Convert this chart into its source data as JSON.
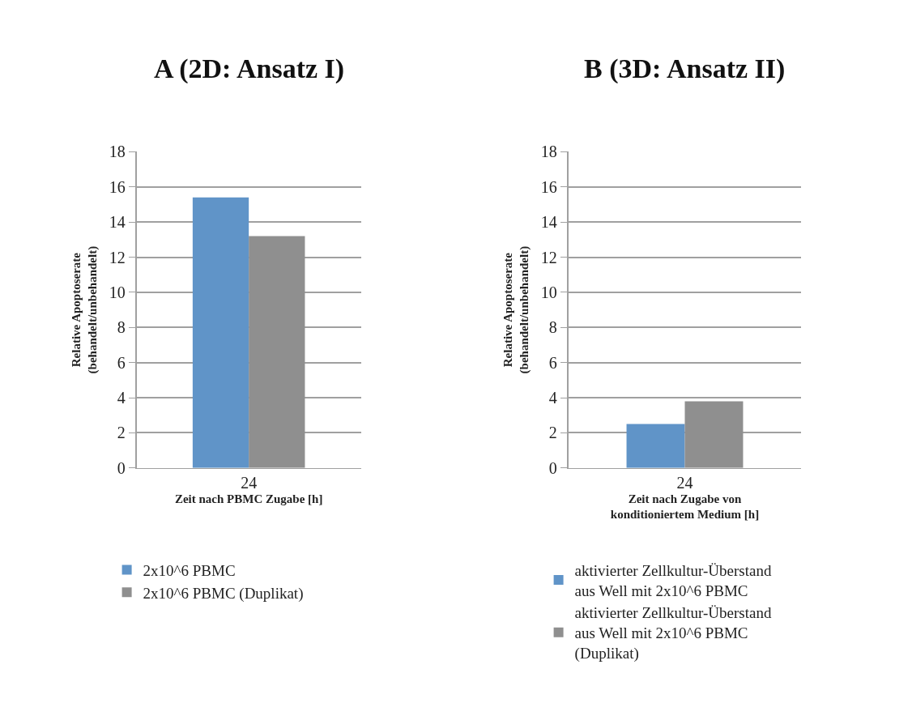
{
  "chart_data": [
    {
      "type": "bar",
      "title": "A (2D: Ansatz I)",
      "xlabel": "Zeit nach PBMC Zugabe [h]",
      "ylabel": "Relative Apoptoserate\n(behandelt/unbehandelt)",
      "categories": [
        "24"
      ],
      "series": [
        {
          "name": "2x10^6 PBMC",
          "color": "#6094c8",
          "values": [
            15.4
          ]
        },
        {
          "name": "2x10^6 PBMC (Duplikat)",
          "color": "#8f8f8f",
          "values": [
            13.2
          ]
        }
      ],
      "ylim": [
        0,
        18
      ],
      "yticks": [
        0,
        2,
        4,
        6,
        8,
        10,
        12,
        14,
        16,
        18
      ],
      "grid": "y",
      "legend": "bottom"
    },
    {
      "type": "bar",
      "title": "B (3D: Ansatz II)",
      "xlabel": "Zeit nach Zugabe von\nkonditioniertem Medium [h]",
      "ylabel": "Relative Apoptoserate\n(behandelt/unbehandelt)",
      "categories": [
        "24"
      ],
      "series": [
        {
          "name": "aktivierter Zellkultur-Überstand\naus Well mit 2x10^6 PBMC",
          "color": "#6094c8",
          "values": [
            2.5
          ]
        },
        {
          "name": "aktivierter Zellkultur-Überstand\naus Well mit 2x10^6 PBMC\n(Duplikat)",
          "color": "#8f8f8f",
          "values": [
            3.8
          ]
        }
      ],
      "ylim": [
        0,
        18
      ],
      "yticks": [
        0,
        2,
        4,
        6,
        8,
        10,
        12,
        14,
        16,
        18
      ],
      "grid": "y",
      "legend": "bottom"
    }
  ]
}
